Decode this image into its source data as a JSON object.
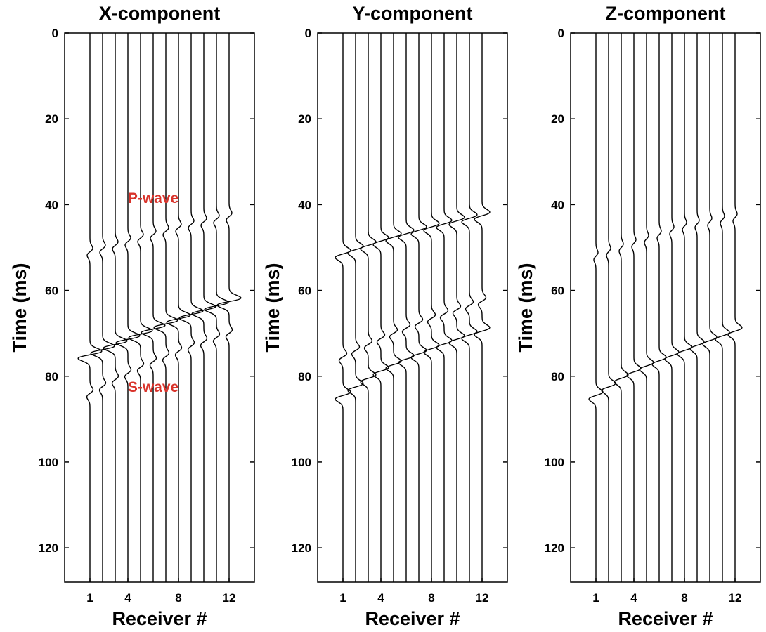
{
  "chart_data": [
    {
      "type": "line",
      "title": "X-component",
      "xlabel": "Receiver #",
      "ylabel": "Time (ms)",
      "xticks": [
        1,
        4,
        8,
        12
      ],
      "yticks": [
        0,
        20,
        40,
        60,
        80,
        100,
        120
      ],
      "ylim": [
        0,
        128
      ],
      "y_inverted": true,
      "receivers": [
        1,
        2,
        3,
        4,
        5,
        6,
        7,
        8,
        9,
        10,
        11,
        12
      ],
      "events": [
        {
          "label": "P-wave",
          "times_ms": [
            51,
            50.3,
            49.5,
            48.6,
            47.8,
            47,
            46.2,
            45.4,
            44.6,
            44,
            43.4,
            42.8
          ],
          "amplitude": 0.4
        },
        {
          "label": "",
          "times_ms": [
            75,
            73.8,
            72.6,
            71.4,
            70.2,
            69,
            67.8,
            66.6,
            65.6,
            64.6,
            63.6,
            62.6
          ],
          "amplitude": 1.7
        },
        {
          "label": "S-wave",
          "times_ms": [
            84,
            82.4,
            80.8,
            79.3,
            77.9,
            76.6,
            75.4,
            74.2,
            73,
            72,
            71,
            70
          ],
          "amplitude": 0.45
        }
      ],
      "annotations": [
        {
          "text": "P-wave",
          "x": 6,
          "y": 38.5,
          "color": "#d9332b"
        },
        {
          "text": "S-wave",
          "x": 6,
          "y": 82.5,
          "color": "#d9332b"
        }
      ]
    },
    {
      "type": "line",
      "title": "Y-component",
      "xlabel": "Receiver #",
      "ylabel": "Time (ms)",
      "xticks": [
        1,
        4,
        8,
        12
      ],
      "yticks": [
        0,
        20,
        40,
        60,
        80,
        100,
        120
      ],
      "ylim": [
        0,
        128
      ],
      "y_inverted": true,
      "receivers": [
        1,
        2,
        3,
        4,
        5,
        6,
        7,
        8,
        9,
        10,
        11,
        12
      ],
      "events": [
        {
          "label": "",
          "times_ms": [
            51.5,
            50.5,
            49.5,
            48.5,
            47.6,
            46.8,
            46,
            45.2,
            44.5,
            43.8,
            43.2,
            42.6
          ],
          "amplitude": 1.1
        },
        {
          "label": "",
          "times_ms": [
            75.5,
            74,
            72.6,
            71.2,
            70,
            68.8,
            67.6,
            66.5,
            65.5,
            64.5,
            63.5,
            62.5
          ],
          "amplitude": 0.55
        },
        {
          "label": "",
          "times_ms": [
            84.5,
            82.5,
            80.5,
            78.8,
            77.3,
            76,
            74.8,
            73.6,
            72.5,
            71.4,
            70.4,
            69.5
          ],
          "amplitude": 1.1
        }
      ],
      "annotations": []
    },
    {
      "type": "line",
      "title": "Z-component",
      "xlabel": "Receiver #",
      "ylabel": "Time (ms)",
      "xticks": [
        1,
        4,
        8,
        12
      ],
      "yticks": [
        0,
        20,
        40,
        60,
        80,
        100,
        120
      ],
      "ylim": [
        0,
        128
      ],
      "y_inverted": true,
      "receivers": [
        1,
        2,
        3,
        4,
        5,
        6,
        7,
        8,
        9,
        10,
        11,
        12
      ],
      "events": [
        {
          "label": "",
          "times_ms": [
            52,
            51,
            50,
            49,
            48,
            47,
            46,
            45,
            44.5,
            44,
            43.5,
            43
          ],
          "amplitude": 0.3
        },
        {
          "label": "",
          "times_ms": [
            84.5,
            82.5,
            80.5,
            79,
            77.6,
            76.4,
            75.2,
            74,
            72.8,
            71.7,
            70.6,
            69.5
          ],
          "amplitude": 1.0
        }
      ],
      "annotations": []
    }
  ]
}
